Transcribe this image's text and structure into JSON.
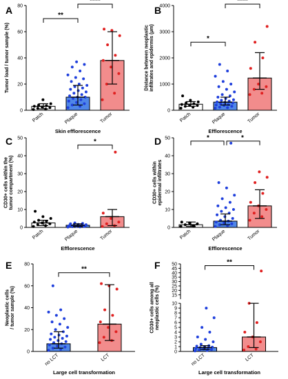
{
  "colors": {
    "patch_bar": "#ffffff",
    "plaque_bar": "#4f86e8",
    "tumor_bar": "#f28c8c",
    "patch_dot": "#000000",
    "plaque_dot": "#1f3fdc",
    "tumor_dot": "#e02020",
    "error": "#000000"
  },
  "chart_data": [
    {
      "id": "A",
      "type": "bar",
      "ylabel": "Tumor load / tumor sample (%)",
      "xlabel": "Skin efflorescence",
      "categories": [
        "Patch",
        "Plaque",
        "Tumor"
      ],
      "values": [
        3,
        10,
        38
      ],
      "errors": [
        [
          1,
          5
        ],
        [
          4,
          19
        ],
        [
          20,
          60
        ]
      ],
      "points": [
        [
          0.5,
          1,
          1.5,
          2,
          2.5,
          3,
          3.5,
          4,
          5,
          8
        ],
        [
          2,
          3,
          4,
          5,
          6,
          7,
          8,
          9,
          10,
          10,
          11,
          12,
          13,
          14,
          15,
          16,
          17,
          18,
          19,
          20,
          22,
          24,
          25,
          27,
          30,
          33,
          35,
          37
        ],
        [
          8,
          13,
          20,
          28,
          33,
          38,
          42,
          50,
          57,
          61,
          62
        ]
      ],
      "yticks": [
        0,
        20,
        40,
        60,
        80
      ],
      "ylim": [
        0,
        80
      ],
      "sig": [
        {
          "from": 0,
          "to": 1,
          "label": "**",
          "y": 70
        },
        {
          "from": 1,
          "to": 2,
          "label": "****",
          "y": 88
        }
      ]
    },
    {
      "id": "B",
      "type": "bar",
      "ylabel": "Distance between neoplastic infiltrates and epidermis (µm)",
      "xlabel": "Efflorescence",
      "categories": [
        "Patch",
        "Plaque",
        "Tumor"
      ],
      "values": [
        230,
        310,
        1230
      ],
      "errors": [
        [
          150,
          330
        ],
        [
          200,
          500
        ],
        [
          800,
          2200
        ]
      ],
      "points": [
        [
          80,
          120,
          150,
          180,
          200,
          220,
          250,
          280,
          320,
          380,
          550
        ],
        [
          80,
          100,
          120,
          150,
          180,
          200,
          220,
          250,
          280,
          300,
          320,
          350,
          380,
          400,
          450,
          500,
          550,
          600,
          700,
          800,
          900,
          1000,
          1100,
          1300,
          1500,
          1750
        ],
        [
          600,
          650,
          800,
          900,
          1000,
          1600,
          2000,
          2600,
          3200
        ]
      ],
      "yticks": [
        0,
        1000,
        2000,
        3000,
        4000
      ],
      "ylim": [
        0,
        4000
      ],
      "sig": [
        {
          "from": 0,
          "to": 1,
          "label": "*",
          "y": 2600
        },
        {
          "from": 1,
          "to": 2,
          "label": "****",
          "y": 4100
        }
      ]
    },
    {
      "id": "C",
      "type": "bar",
      "ylabel": "CD30+ cells within the tumor compartment (%)",
      "xlabel": "Efflorescence",
      "categories": [
        "Patch",
        "Plaque",
        "Tumor"
      ],
      "values": [
        2.5,
        1.2,
        6
      ],
      "errors": [
        [
          1,
          4
        ],
        [
          0.5,
          2
        ],
        [
          1,
          10
        ]
      ],
      "points": [
        [
          0.5,
          1,
          1.5,
          2,
          2.5,
          3,
          3.5,
          4,
          5,
          6,
          9
        ],
        [
          0.2,
          0.3,
          0.4,
          0.5,
          0.6,
          0.7,
          0.8,
          0.9,
          1,
          1,
          1.1,
          1.2,
          1.3,
          1.5,
          1.7,
          2,
          2.2,
          2.5
        ],
        [
          0.5,
          1,
          2,
          3,
          5,
          8,
          42
        ]
      ],
      "yticks": [
        0,
        10,
        20,
        30,
        40,
        50
      ],
      "ylim": [
        0,
        50
      ],
      "sig": [
        {
          "from": 1,
          "to": 2,
          "label": "*",
          "y": 46
        }
      ]
    },
    {
      "id": "D",
      "type": "bar",
      "ylabel": "CD30+ cells within epidermal infiltrates",
      "xlabel": "Efflorescence",
      "categories": [
        "Patch",
        "Plaque",
        "Tumor"
      ],
      "values": [
        1.5,
        3.5,
        12
      ],
      "errors": [
        [
          0.5,
          3
        ],
        [
          1.5,
          7.5
        ],
        [
          5,
          21
        ]
      ],
      "points": [
        [
          0.5,
          1,
          1.5,
          2,
          2.5,
          3,
          0.8
        ],
        [
          0.5,
          1,
          1.5,
          2,
          2.5,
          3,
          3.5,
          4,
          5,
          6,
          7,
          8,
          9,
          10,
          11,
          12,
          14,
          16,
          18,
          22,
          25,
          47
        ],
        [
          4,
          6,
          8,
          10,
          12,
          14,
          19,
          25,
          28,
          31
        ]
      ],
      "yticks": [
        0,
        10,
        20,
        30,
        40,
        50
      ],
      "ylim": [
        0,
        50
      ],
      "sig": [
        {
          "from": 0,
          "to": 1,
          "label": "*",
          "y": 50
        },
        {
          "from": 1,
          "to": 2,
          "label": "*",
          "y": 50
        }
      ]
    },
    {
      "id": "E",
      "type": "bar",
      "ylabel": "Neoplastic cells / tumor sample (%)",
      "xlabel": "Large cell transformation",
      "categories": [
        "no LCT",
        "LCT"
      ],
      "values": [
        7,
        25
      ],
      "errors": [
        [
          3,
          18
        ],
        [
          10,
          61
        ]
      ],
      "points": [
        [
          1,
          2,
          3,
          4,
          5,
          6,
          7,
          8,
          9,
          10,
          11,
          12,
          13,
          14,
          15,
          16,
          18,
          20,
          22,
          25,
          27,
          30,
          33,
          36,
          38,
          60
        ],
        [
          8,
          10,
          13,
          18,
          22,
          27,
          33,
          38,
          57,
          60,
          62
        ]
      ],
      "yticks": [
        0,
        20,
        40,
        60,
        80
      ],
      "ylim": [
        0,
        80
      ],
      "sig": [
        {
          "from": 0,
          "to": 1,
          "label": "**",
          "y": 72
        }
      ]
    },
    {
      "id": "F",
      "type": "bar",
      "ylabel": "CD30+ cells among all neoplastic cells (%)",
      "xlabel": "Large cell transformation",
      "categories": [
        "no LCT",
        "LCT"
      ],
      "values": [
        0.8,
        3
      ],
      "errors": [
        [
          0.4,
          1.2
        ],
        [
          0.8,
          10
        ]
      ],
      "points": [
        [
          0.1,
          0.2,
          0.3,
          0.4,
          0.5,
          0.6,
          0.7,
          0.8,
          0.9,
          1,
          1.1,
          1.2,
          1.5,
          2,
          2.5,
          3,
          4,
          5,
          7,
          9
        ],
        [
          0.3,
          0.5,
          1,
          2,
          3,
          4,
          6,
          10,
          42
        ]
      ],
      "yticks": [
        0,
        1,
        2,
        3,
        4,
        5,
        6,
        7,
        8,
        9,
        10,
        15,
        20,
        25,
        30,
        35,
        40,
        45,
        50
      ],
      "ylim": [
        0,
        50
      ],
      "ybreak": 10,
      "sig": [
        {
          "from": 0,
          "to": 1,
          "label": "**",
          "y": 48
        }
      ]
    }
  ]
}
